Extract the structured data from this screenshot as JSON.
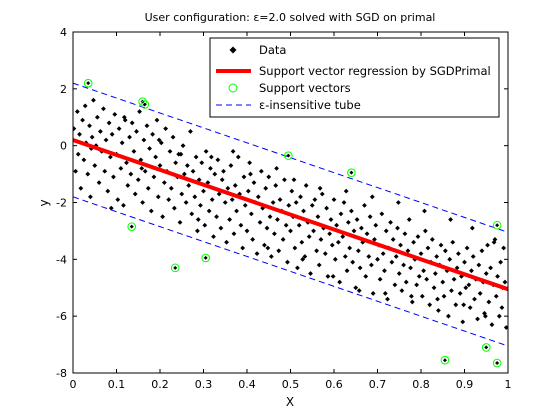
{
  "chart_data": {
    "type": "scatter",
    "title": "User configuration: ε=2.0 solved with SGD on primal",
    "xlabel": "X",
    "ylabel": "y",
    "xlim": [
      0,
      1
    ],
    "ylim": [
      -8,
      4
    ],
    "xticks": [
      "0",
      "0.1",
      "0.2",
      "0.3",
      "0.4",
      "0.5",
      "0.6",
      "0.7",
      "0.8",
      "0.9",
      "1"
    ],
    "yticks": [
      "4",
      "2",
      "0",
      "-2",
      "-4",
      "-6",
      "-8"
    ],
    "grid": false,
    "legend_position": "top-right",
    "legend": [
      "Data",
      "Support vector regression by SGDPrimal",
      "Support vectors",
      "ε-insensitive tube"
    ],
    "regression_line": {
      "x": [
        0,
        1
      ],
      "y": [
        0.2,
        -5.05
      ],
      "color": "#ff0000"
    },
    "tube_upper": {
      "x": [
        0,
        1
      ],
      "y": [
        2.2,
        -3.05
      ],
      "color": "#0000ff"
    },
    "tube_lower": {
      "x": [
        0,
        1
      ],
      "y": [
        -1.8,
        -7.05
      ],
      "color": "#0000ff"
    },
    "support_vectors": {
      "color": "#00ff00",
      "points": [
        [
          0.035,
          2.2
        ],
        [
          0.16,
          1.55
        ],
        [
          0.165,
          1.45
        ],
        [
          0.495,
          -0.35
        ],
        [
          0.64,
          -0.95
        ],
        [
          0.975,
          -2.8
        ],
        [
          0.135,
          -2.85
        ],
        [
          0.235,
          -4.3
        ],
        [
          0.305,
          -3.95
        ],
        [
          0.855,
          -7.55
        ],
        [
          0.95,
          -7.1
        ],
        [
          0.975,
          -7.65
        ]
      ]
    },
    "data": {
      "color": "#000000",
      "points": [
        [
          0.002,
          0.6
        ],
        [
          0.006,
          -0.9
        ],
        [
          0.01,
          1.2
        ],
        [
          0.012,
          -0.3
        ],
        [
          0.015,
          0.4
        ],
        [
          0.018,
          -1.5
        ],
        [
          0.022,
          0.9
        ],
        [
          0.025,
          -0.5
        ],
        [
          0.028,
          1.4
        ],
        [
          0.03,
          0.1
        ],
        [
          0.034,
          -1.0
        ],
        [
          0.038,
          0.7
        ],
        [
          0.04,
          -1.8
        ],
        [
          0.044,
          0.3
        ],
        [
          0.047,
          1.6
        ],
        [
          0.05,
          -0.7
        ],
        [
          0.053,
          0.0
        ],
        [
          0.056,
          1.0
        ],
        [
          0.06,
          -1.3
        ],
        [
          0.063,
          0.5
        ],
        [
          0.066,
          -0.2
        ],
        [
          0.07,
          1.3
        ],
        [
          0.073,
          -0.9
        ],
        [
          0.076,
          0.2
        ],
        [
          0.08,
          -1.6
        ],
        [
          0.083,
          0.8
        ],
        [
          0.086,
          -0.4
        ],
        [
          0.09,
          0.4
        ],
        [
          0.093,
          -1.1
        ],
        [
          0.096,
          1.1
        ],
        [
          0.1,
          -0.3
        ],
        [
          0.103,
          -1.9
        ],
        [
          0.106,
          0.6
        ],
        [
          0.11,
          -0.8
        ],
        [
          0.113,
          0.1
        ],
        [
          0.116,
          -2.1
        ],
        [
          0.12,
          0.9
        ],
        [
          0.123,
          -0.6
        ],
        [
          0.126,
          -1.4
        ],
        [
          0.13,
          0.3
        ],
        [
          0.133,
          -1.0
        ],
        [
          0.136,
          0.8
        ],
        [
          0.14,
          -0.2
        ],
        [
          0.143,
          -1.7
        ],
        [
          0.146,
          0.5
        ],
        [
          0.15,
          -1.2
        ],
        [
          0.153,
          1.2
        ],
        [
          0.156,
          -0.5
        ],
        [
          0.16,
          -2.0
        ],
        [
          0.163,
          0.2
        ],
        [
          0.166,
          -0.9
        ],
        [
          0.17,
          0.7
        ],
        [
          0.173,
          -1.5
        ],
        [
          0.176,
          -0.1
        ],
        [
          0.18,
          -2.3
        ],
        [
          0.183,
          0.4
        ],
        [
          0.186,
          -1.1
        ],
        [
          0.19,
          -0.4
        ],
        [
          0.193,
          0.9
        ],
        [
          0.196,
          -1.8
        ],
        [
          0.2,
          -0.7
        ],
        [
          0.203,
          0.1
        ],
        [
          0.206,
          -2.5
        ],
        [
          0.21,
          -1.3
        ],
        [
          0.213,
          0.6
        ],
        [
          0.216,
          -0.9
        ],
        [
          0.22,
          -1.9
        ],
        [
          0.223,
          -0.2
        ],
        [
          0.226,
          -1.5
        ],
        [
          0.23,
          0.3
        ],
        [
          0.233,
          -2.2
        ],
        [
          0.236,
          -0.6
        ],
        [
          0.24,
          -1.1
        ],
        [
          0.243,
          -0.3
        ],
        [
          0.246,
          -2.7
        ],
        [
          0.25,
          -1.7
        ],
        [
          0.253,
          0.0
        ],
        [
          0.256,
          -1.0
        ],
        [
          0.26,
          -2.0
        ],
        [
          0.263,
          -0.7
        ],
        [
          0.266,
          -1.4
        ],
        [
          0.27,
          0.5
        ],
        [
          0.273,
          -2.4
        ],
        [
          0.276,
          -0.9
        ],
        [
          0.28,
          -1.8
        ],
        [
          0.283,
          -0.4
        ],
        [
          0.286,
          -3.0
        ],
        [
          0.29,
          -1.2
        ],
        [
          0.293,
          -2.1
        ],
        [
          0.296,
          -0.6
        ],
        [
          0.3,
          -1.6
        ],
        [
          0.303,
          -2.8
        ],
        [
          0.306,
          -0.2
        ],
        [
          0.31,
          -1.3
        ],
        [
          0.313,
          -2.3
        ],
        [
          0.316,
          -0.8
        ],
        [
          0.32,
          -1.9
        ],
        [
          0.323,
          -3.2
        ],
        [
          0.326,
          -1.0
        ],
        [
          0.33,
          -2.5
        ],
        [
          0.333,
          -0.5
        ],
        [
          0.336,
          -1.7
        ],
        [
          0.34,
          -2.9
        ],
        [
          0.343,
          -1.2
        ],
        [
          0.346,
          -0.9
        ],
        [
          0.35,
          -2.0
        ],
        [
          0.353,
          -3.4
        ],
        [
          0.356,
          -1.5
        ],
        [
          0.36,
          -2.6
        ],
        [
          0.363,
          -0.7
        ],
        [
          0.366,
          -1.9
        ],
        [
          0.37,
          -3.1
        ],
        [
          0.373,
          -1.4
        ],
        [
          0.376,
          -2.3
        ],
        [
          0.38,
          -0.4
        ],
        [
          0.383,
          -1.7
        ],
        [
          0.386,
          -2.8
        ],
        [
          0.39,
          -3.6
        ],
        [
          0.393,
          -1.1
        ],
        [
          0.396,
          -2.1
        ],
        [
          0.4,
          -3.0
        ],
        [
          0.403,
          -1.6
        ],
        [
          0.406,
          -0.6
        ],
        [
          0.41,
          -2.4
        ],
        [
          0.413,
          -3.3
        ],
        [
          0.416,
          -1.3
        ],
        [
          0.42,
          -2.0
        ],
        [
          0.423,
          -3.8
        ],
        [
          0.426,
          -1.8
        ],
        [
          0.43,
          -2.7
        ],
        [
          0.433,
          -0.9
        ],
        [
          0.436,
          -2.2
        ],
        [
          0.44,
          -3.5
        ],
        [
          0.443,
          -1.5
        ],
        [
          0.446,
          -2.9
        ],
        [
          0.45,
          -1.1
        ],
        [
          0.453,
          -2.5
        ],
        [
          0.456,
          -3.9
        ],
        [
          0.46,
          -2.0
        ],
        [
          0.463,
          -3.1
        ],
        [
          0.466,
          -1.4
        ],
        [
          0.47,
          -2.6
        ],
        [
          0.473,
          -3.7
        ],
        [
          0.476,
          -1.9
        ],
        [
          0.48,
          -2.3
        ],
        [
          0.483,
          -3.3
        ],
        [
          0.486,
          -1.2
        ],
        [
          0.49,
          -2.8
        ],
        [
          0.493,
          -4.1
        ],
        [
          0.496,
          -2.1
        ],
        [
          0.5,
          -3.0
        ],
        [
          0.503,
          -1.6
        ],
        [
          0.506,
          -2.5
        ],
        [
          0.51,
          -3.6
        ],
        [
          0.513,
          -2.0
        ],
        [
          0.516,
          -4.3
        ],
        [
          0.52,
          -2.8
        ],
        [
          0.523,
          -1.8
        ],
        [
          0.526,
          -3.4
        ],
        [
          0.53,
          -2.3
        ],
        [
          0.533,
          -3.9
        ],
        [
          0.536,
          -1.4
        ],
        [
          0.54,
          -2.7
        ],
        [
          0.543,
          -3.2
        ],
        [
          0.546,
          -4.5
        ],
        [
          0.55,
          -2.1
        ],
        [
          0.553,
          -3.0
        ],
        [
          0.556,
          -1.9
        ],
        [
          0.56,
          -3.7
        ],
        [
          0.563,
          -2.5
        ],
        [
          0.566,
          -4.2
        ],
        [
          0.57,
          -3.3
        ],
        [
          0.573,
          -1.7
        ],
        [
          0.576,
          -2.9
        ],
        [
          0.58,
          -3.8
        ],
        [
          0.583,
          -2.2
        ],
        [
          0.586,
          -4.6
        ],
        [
          0.59,
          -3.1
        ],
        [
          0.593,
          -2.6
        ],
        [
          0.596,
          -3.5
        ],
        [
          0.6,
          -1.9
        ],
        [
          0.603,
          -4.0
        ],
        [
          0.606,
          -2.8
        ],
        [
          0.61,
          -3.4
        ],
        [
          0.613,
          -4.8
        ],
        [
          0.616,
          -2.4
        ],
        [
          0.62,
          -3.2
        ],
        [
          0.623,
          -2.0
        ],
        [
          0.626,
          -3.9
        ],
        [
          0.63,
          -4.4
        ],
        [
          0.633,
          -2.7
        ],
        [
          0.636,
          -3.6
        ],
        [
          0.64,
          -2.3
        ],
        [
          0.643,
          -4.1
        ],
        [
          0.646,
          -3.0
        ],
        [
          0.65,
          -5.0
        ],
        [
          0.653,
          -2.6
        ],
        [
          0.656,
          -3.7
        ],
        [
          0.66,
          -4.3
        ],
        [
          0.663,
          -2.9
        ],
        [
          0.666,
          -3.4
        ],
        [
          0.67,
          -2.1
        ],
        [
          0.673,
          -4.6
        ],
        [
          0.676,
          -3.1
        ],
        [
          0.68,
          -3.9
        ],
        [
          0.683,
          -2.5
        ],
        [
          0.686,
          -4.2
        ],
        [
          0.69,
          -5.2
        ],
        [
          0.693,
          -3.3
        ],
        [
          0.696,
          -2.8
        ],
        [
          0.7,
          -4.0
        ],
        [
          0.703,
          -3.5
        ],
        [
          0.706,
          -4.7
        ],
        [
          0.71,
          -2.4
        ],
        [
          0.713,
          -3.8
        ],
        [
          0.716,
          -4.4
        ],
        [
          0.72,
          -3.0
        ],
        [
          0.723,
          -5.4
        ],
        [
          0.726,
          -3.6
        ],
        [
          0.73,
          -2.7
        ],
        [
          0.733,
          -4.1
        ],
        [
          0.736,
          -3.3
        ],
        [
          0.74,
          -4.9
        ],
        [
          0.743,
          -3.9
        ],
        [
          0.746,
          -2.9
        ],
        [
          0.75,
          -4.5
        ],
        [
          0.753,
          -3.5
        ],
        [
          0.756,
          -5.1
        ],
        [
          0.76,
          -4.2
        ],
        [
          0.763,
          -3.1
        ],
        [
          0.766,
          -4.8
        ],
        [
          0.77,
          -3.7
        ],
        [
          0.773,
          -2.6
        ],
        [
          0.776,
          -4.3
        ],
        [
          0.78,
          -5.5
        ],
        [
          0.783,
          -3.4
        ],
        [
          0.786,
          -4.0
        ],
        [
          0.79,
          -4.9
        ],
        [
          0.793,
          -3.2
        ],
        [
          0.796,
          -4.6
        ],
        [
          0.8,
          -3.8
        ],
        [
          0.803,
          -5.3
        ],
        [
          0.806,
          -4.4
        ],
        [
          0.81,
          -3.0
        ],
        [
          0.813,
          -4.7
        ],
        [
          0.816,
          -3.6
        ],
        [
          0.82,
          -5.6
        ],
        [
          0.823,
          -4.1
        ],
        [
          0.826,
          -3.3
        ],
        [
          0.83,
          -5.0
        ],
        [
          0.833,
          -4.5
        ],
        [
          0.836,
          -3.9
        ],
        [
          0.84,
          -5.8
        ],
        [
          0.843,
          -4.2
        ],
        [
          0.846,
          -3.5
        ],
        [
          0.85,
          -4.8
        ],
        [
          0.853,
          -5.3
        ],
        [
          0.856,
          -3.7
        ],
        [
          0.86,
          -4.4
        ],
        [
          0.863,
          -6.0
        ],
        [
          0.866,
          -4.0
        ],
        [
          0.87,
          -5.1
        ],
        [
          0.873,
          -3.4
        ],
        [
          0.876,
          -4.7
        ],
        [
          0.88,
          -5.6
        ],
        [
          0.883,
          -4.3
        ],
        [
          0.886,
          -3.8
        ],
        [
          0.89,
          -5.2
        ],
        [
          0.893,
          -4.6
        ],
        [
          0.896,
          -6.2
        ],
        [
          0.9,
          -4.1
        ],
        [
          0.903,
          -5.0
        ],
        [
          0.906,
          -3.6
        ],
        [
          0.91,
          -4.9
        ],
        [
          0.913,
          -5.7
        ],
        [
          0.916,
          -4.4
        ],
        [
          0.92,
          -3.9
        ],
        [
          0.923,
          -5.4
        ],
        [
          0.926,
          -4.7
        ],
        [
          0.93,
          -6.1
        ],
        [
          0.933,
          -4.2
        ],
        [
          0.936,
          -5.2
        ],
        [
          0.94,
          -3.7
        ],
        [
          0.943,
          -4.8
        ],
        [
          0.946,
          -5.9
        ],
        [
          0.95,
          -4.5
        ],
        [
          0.953,
          -3.5
        ],
        [
          0.956,
          -5.5
        ],
        [
          0.96,
          -4.3
        ],
        [
          0.963,
          -6.3
        ],
        [
          0.966,
          -4.9
        ],
        [
          0.97,
          -3.3
        ],
        [
          0.973,
          -5.3
        ],
        [
          0.976,
          -4.6
        ],
        [
          0.98,
          -6.0
        ],
        [
          0.983,
          -4.1
        ],
        [
          0.986,
          -5.7
        ],
        [
          0.99,
          -3.6
        ],
        [
          0.993,
          -4.8
        ],
        [
          0.996,
          -6.4
        ],
        [
          0.042,
          -0.1
        ],
        [
          0.088,
          -2.2
        ],
        [
          0.118,
          1.0
        ],
        [
          0.158,
          -0.8
        ],
        [
          0.198,
          0.2
        ],
        [
          0.248,
          -0.3
        ],
        [
          0.288,
          -2.6
        ],
        [
          0.318,
          -0.4
        ],
        [
          0.368,
          -0.2
        ],
        [
          0.408,
          -1.0
        ],
        [
          0.448,
          -3.6
        ],
        [
          0.468,
          -0.8
        ],
        [
          0.508,
          -1.2
        ],
        [
          0.528,
          -4.0
        ],
        [
          0.568,
          -1.5
        ],
        [
          0.598,
          -4.6
        ],
        [
          0.628,
          -1.6
        ],
        [
          0.658,
          -5.1
        ],
        [
          0.688,
          -1.8
        ],
        [
          0.718,
          -5.2
        ],
        [
          0.748,
          -2.0
        ],
        [
          0.778,
          -5.3
        ],
        [
          0.808,
          -2.3
        ],
        [
          0.838,
          -5.4
        ],
        [
          0.868,
          -2.6
        ],
        [
          0.898,
          -5.6
        ],
        [
          0.918,
          -2.9
        ],
        [
          0.948,
          -6.0
        ],
        [
          0.968,
          -3.4
        ],
        [
          0.988,
          -5.0
        ]
      ]
    }
  }
}
